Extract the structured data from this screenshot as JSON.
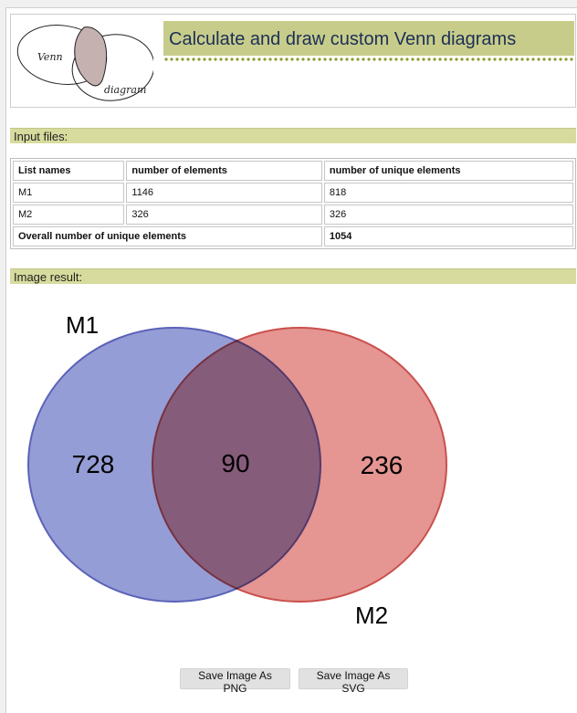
{
  "header": {
    "logo_word_1": "Venn",
    "logo_word_2": "diagram",
    "title": "Calculate and draw custom Venn diagrams"
  },
  "input_section": {
    "title": "Input files:",
    "columns": [
      "List names",
      "number of elements",
      "number of unique elements"
    ],
    "rows": [
      {
        "name": "M1",
        "elements": "1146",
        "unique": "818"
      },
      {
        "name": "M2",
        "elements": "326",
        "unique": "326"
      }
    ],
    "overall_label": "Overall number of unique elements",
    "overall_value": "1054"
  },
  "image_section": {
    "title": "Image result:"
  },
  "venn": {
    "set_a_label": "M1",
    "set_b_label": "M2",
    "only_a": "728",
    "intersection": "90",
    "only_b": "236",
    "colors": {
      "set_a_fill": "#7b84cc",
      "set_a_stroke": "#5b62b8",
      "set_b_fill": "#de7a77",
      "set_b_stroke": "#c9504c"
    }
  },
  "buttons": {
    "save_png": "Save Image As PNG",
    "save_svg": "Save Image As SVG"
  }
}
